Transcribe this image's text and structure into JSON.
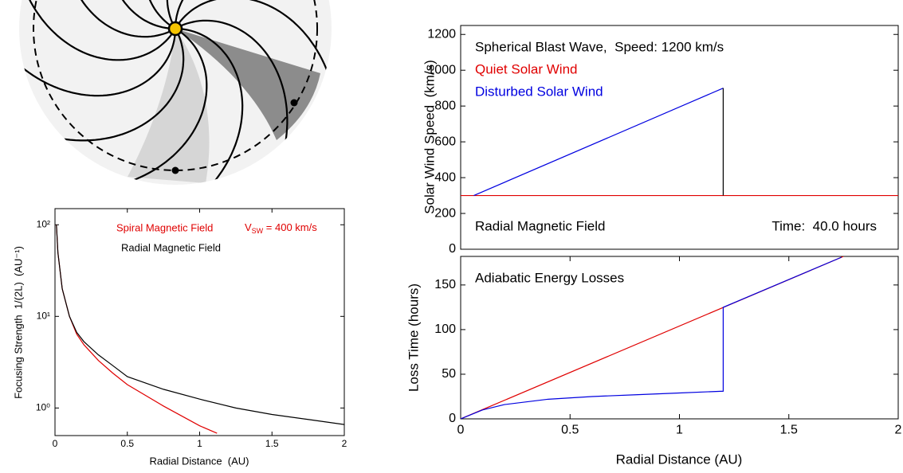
{
  "chart_data": [
    {
      "type": "line",
      "log_y": true,
      "xlabel": "Radial Distance  (AU)",
      "ylabel": "Focusing Strength  1/(2L)  (AU⁻¹)",
      "xlim": [
        0,
        2
      ],
      "xticks": [
        0,
        0.5,
        1,
        1.5,
        2
      ],
      "ylim": [
        0.5,
        150
      ],
      "yticks": [
        {
          "value": 1,
          "label": "10⁰"
        },
        {
          "value": 10,
          "label": "10¹"
        },
        {
          "value": 100,
          "label": "10²"
        }
      ],
      "annotation": {
        "base": "V",
        "subscript": "SW",
        "text": " = 400 km/s"
      },
      "series": [
        {
          "name": "Spiral Magnetic Field",
          "color": "#e00000",
          "x": [
            0.01,
            0.02,
            0.05,
            0.1,
            0.15,
            0.2,
            0.3,
            0.4,
            0.5,
            0.75,
            1,
            1.12
          ],
          "values": [
            100,
            50,
            20,
            10,
            6.4,
            4.9,
            3.3,
            2.4,
            1.8,
            1.05,
            0.64,
            0.53
          ]
        },
        {
          "name": "Radial Magnetic Field",
          "color": "#000000",
          "x": [
            0.01,
            0.02,
            0.05,
            0.1,
            0.15,
            0.2,
            0.3,
            0.4,
            0.5,
            0.75,
            1,
            1.25,
            1.5,
            1.75,
            2
          ],
          "values": [
            100,
            50,
            20,
            10,
            6.7,
            5.3,
            3.8,
            2.9,
            2.2,
            1.6,
            1.25,
            1.0,
            0.85,
            0.75,
            0.66
          ]
        }
      ]
    },
    {
      "type": "line",
      "log_y": false,
      "ylabel": "Solar Wind Speed  (km/s)",
      "xlim": [
        0,
        2
      ],
      "ylim": [
        0,
        1250
      ],
      "yticks": [
        0,
        200,
        400,
        600,
        800,
        1000,
        1200
      ],
      "annotations": [
        "Spherical Blast Wave,  Speed: 1200 km/s",
        "Radial Magnetic Field",
        "Time:  40.0 hours"
      ],
      "series": [
        {
          "name": "Quiet Solar Wind",
          "color": "#e00000",
          "x": [
            0,
            2
          ],
          "values": [
            300,
            300
          ]
        },
        {
          "name": "Disturbed Solar Wind",
          "color": "#0000e0",
          "x": [
            0.06,
            1.2
          ],
          "values": [
            300,
            900
          ]
        },
        {
          "color": "#000000",
          "x": [
            1.2,
            1.2
          ],
          "values": [
            300,
            900
          ]
        }
      ]
    },
    {
      "type": "line",
      "log_y": false,
      "xlabel": "Radial Distance (AU)",
      "ylabel": "Loss Time (hours)",
      "xlim": [
        0,
        2
      ],
      "xticks": [
        0,
        0.5,
        1,
        1.5,
        2
      ],
      "ylim": [
        0,
        182
      ],
      "yticks": [
        0,
        50,
        100,
        150
      ],
      "annotations": [
        "Adiabatic Energy Losses"
      ],
      "series": [
        {
          "color": "#e00000",
          "x": [
            0,
            1.75
          ],
          "values": [
            0,
            182
          ]
        },
        {
          "color": "#0000e0",
          "x": [
            0,
            0.1,
            0.2,
            0.4,
            0.6,
            0.8,
            1,
            1.2,
            1.2,
            1.74
          ],
          "values": [
            0,
            10,
            16,
            22,
            25,
            27,
            29,
            31,
            125,
            181
          ]
        }
      ]
    }
  ]
}
